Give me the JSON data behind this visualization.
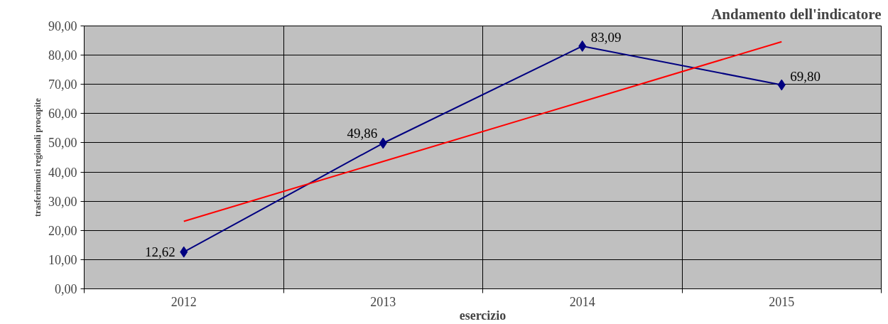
{
  "chart_data": {
    "type": "line",
    "title": "Andamento dell'indicatore",
    "xlabel": "esercizio",
    "ylabel": "trasferimenti regionali procapite",
    "categories": [
      "2012",
      "2013",
      "2014",
      "2015"
    ],
    "series": [
      {
        "color": "#000080",
        "values": [
          12.62,
          49.86,
          83.09,
          69.8
        ],
        "value_labels": [
          "12,62",
          "49,86",
          "83,09",
          "69,80"
        ]
      },
      {
        "color": "#ff0000",
        "values": [
          23.1,
          43.6,
          64.1,
          84.6
        ],
        "marker": "none"
      }
    ],
    "ylim": [
      0,
      90
    ],
    "yticks": [
      {
        "value": 0,
        "label": "0,00"
      },
      {
        "value": 10,
        "label": "10,00"
      },
      {
        "value": 20,
        "label": "20,00"
      },
      {
        "value": 30,
        "label": "30,00"
      },
      {
        "value": 40,
        "label": "40,00"
      },
      {
        "value": 50,
        "label": "50,00"
      },
      {
        "value": 60,
        "label": "60,00"
      },
      {
        "value": 70,
        "label": "70,00"
      },
      {
        "value": 80,
        "label": "80,00"
      },
      {
        "value": 90,
        "label": "90,00"
      }
    ],
    "grid": true,
    "marker": "diamond"
  }
}
